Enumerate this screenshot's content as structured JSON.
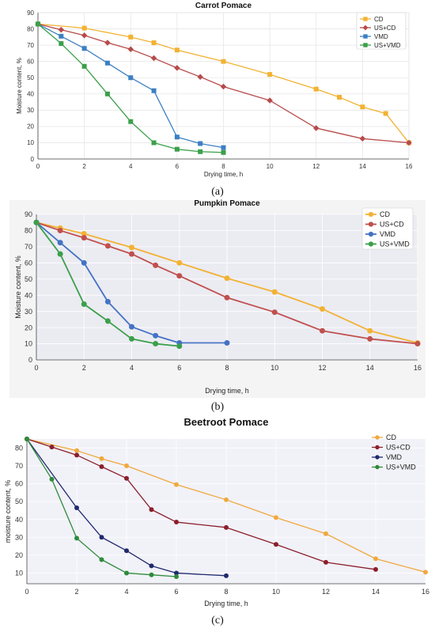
{
  "chart_data": [
    {
      "type": "line",
      "title": "Carrot Pomace",
      "xlabel": "Drying time, h",
      "ylabel": "Moisture content, %",
      "panel_label": "(a)",
      "xlim": [
        0,
        16
      ],
      "ylim": [
        0,
        90
      ],
      "xticks": [
        0,
        2,
        4,
        6,
        8,
        10,
        12,
        14,
        16
      ],
      "yticks": [
        0,
        10,
        20,
        30,
        40,
        50,
        60,
        70,
        80,
        90
      ],
      "legend_position": "top-right",
      "grid": true,
      "series": [
        {
          "name": "CD",
          "color": "#f2b233",
          "marker": "square",
          "x": [
            0,
            2,
            4,
            5,
            6,
            8,
            10,
            12,
            13,
            14,
            15,
            16
          ],
          "y": [
            83,
            80.5,
            75,
            71.5,
            67,
            60,
            52,
            43,
            38,
            32,
            28,
            10
          ]
        },
        {
          "name": "US+CD",
          "color": "#b84a4a",
          "marker": "diamond",
          "x": [
            0,
            1,
            2,
            3,
            4,
            5,
            6,
            7,
            8,
            10,
            12,
            14,
            16
          ],
          "y": [
            83,
            79.5,
            76,
            71.5,
            67.5,
            62,
            56,
            50.5,
            44.5,
            36,
            19,
            12.5,
            10
          ]
        },
        {
          "name": "VMD",
          "color": "#3b7fc4",
          "marker": "square",
          "x": [
            0,
            1,
            2,
            3,
            4,
            5,
            6,
            7,
            8
          ],
          "y": [
            83,
            75.5,
            68,
            59,
            50,
            42,
            13.5,
            9.5,
            7
          ]
        },
        {
          "name": "US+VMD",
          "color": "#3aa04a",
          "marker": "square",
          "x": [
            0,
            1,
            2,
            3,
            4,
            5,
            6,
            7,
            8
          ],
          "y": [
            83,
            71,
            57,
            40,
            23,
            10,
            6,
            4.5,
            4
          ]
        }
      ]
    },
    {
      "type": "line",
      "title": "Pumpkin Pomace",
      "xlabel": "Drying time, h",
      "ylabel": "Moisture content, %",
      "panel_label": "(b)",
      "xlim": [
        0,
        16
      ],
      "ylim": [
        0,
        90
      ],
      "xticks": [
        0,
        2,
        4,
        6,
        8,
        10,
        12,
        14,
        16
      ],
      "yticks": [
        0,
        10,
        20,
        30,
        40,
        50,
        60,
        70,
        80,
        90
      ],
      "legend_position": "top-right",
      "grid": true,
      "series": [
        {
          "name": "CD",
          "color": "#f2b233",
          "marker": "circle",
          "x": [
            0,
            1,
            2,
            4,
            6,
            8,
            10,
            12,
            14,
            16
          ],
          "y": [
            85,
            81.5,
            78,
            69.5,
            60,
            50.5,
            42,
            31.5,
            18,
            10.5
          ]
        },
        {
          "name": "US+CD",
          "color": "#c0504d",
          "marker": "circle",
          "x": [
            0,
            1,
            2,
            3,
            4,
            5,
            6,
            8,
            10,
            12,
            14,
            16
          ],
          "y": [
            85,
            80,
            75.5,
            70.5,
            65.5,
            58.5,
            52,
            38.5,
            29.5,
            18,
            13,
            10
          ]
        },
        {
          "name": "VMD",
          "color": "#4472c4",
          "marker": "circle",
          "x": [
            0,
            1,
            2,
            3,
            4,
            5,
            6,
            8
          ],
          "y": [
            85,
            72.5,
            60,
            36,
            20.5,
            15,
            10.5,
            10.5
          ]
        },
        {
          "name": "US+VMD",
          "color": "#3aa04a",
          "marker": "circle",
          "x": [
            0,
            1,
            2,
            3,
            4,
            5,
            6
          ],
          "y": [
            85,
            65.5,
            34.5,
            24,
            13,
            10,
            8.5
          ]
        }
      ]
    },
    {
      "type": "line",
      "title": "Beetroot Pomace",
      "xlabel": "Drying time, h",
      "ylabel": "moisture content, %",
      "panel_label": "(c)",
      "xlim": [
        0,
        16
      ],
      "ylim": [
        4,
        85
      ],
      "xticks": [
        0,
        2,
        4,
        6,
        8,
        10,
        12,
        14,
        16
      ],
      "yticks": [
        10,
        20,
        30,
        40,
        50,
        60,
        70,
        80
      ],
      "legend_position": "top-right",
      "grid": true,
      "series": [
        {
          "name": "CD",
          "color": "#f0a93e",
          "marker": "circle",
          "x": [
            0,
            2,
            3,
            4,
            6,
            8,
            10,
            12,
            14,
            16
          ],
          "y": [
            85,
            78.5,
            74,
            70,
            59.5,
            51,
            41,
            32,
            18,
            10.5
          ]
        },
        {
          "name": "US+CD",
          "color": "#8b1f2b",
          "marker": "circle",
          "x": [
            0,
            1,
            2,
            3,
            4,
            5,
            6,
            8,
            10,
            12,
            14
          ],
          "y": [
            85,
            80.5,
            76,
            69.5,
            63,
            45.5,
            38.5,
            35.5,
            26,
            16,
            12
          ]
        },
        {
          "name": "VMD",
          "color": "#1f2a6e",
          "marker": "circle",
          "x": [
            0,
            2,
            3,
            4,
            5,
            6,
            8
          ],
          "y": [
            85,
            46.5,
            30,
            22.5,
            14,
            10,
            8.5
          ]
        },
        {
          "name": "US+VMD",
          "color": "#2e8b3a",
          "marker": "circle",
          "x": [
            0,
            1,
            2,
            3,
            4,
            5,
            6
          ],
          "y": [
            85,
            62.5,
            29.5,
            17.5,
            10,
            9,
            8
          ]
        }
      ]
    }
  ]
}
